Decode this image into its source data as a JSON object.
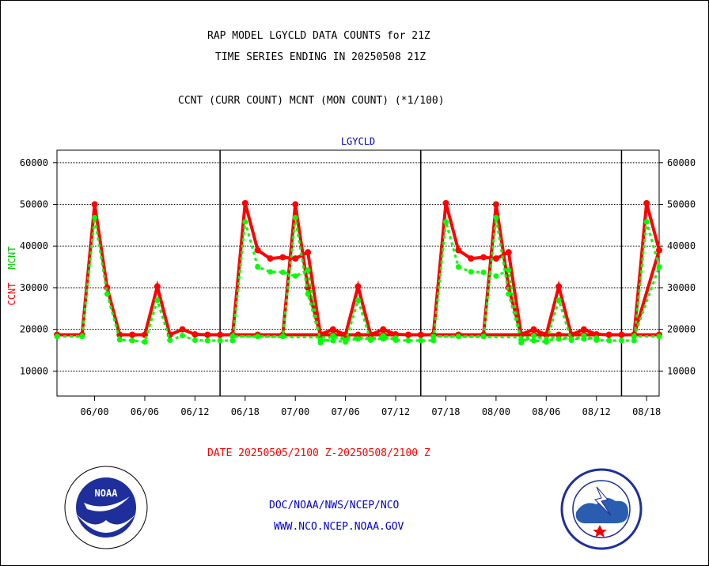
{
  "header": {
    "title_line1": "RAP MODEL LGYCLD DATA COUNTS for 21Z",
    "title_line2": "TIME SERIES ENDING IN 20250508 21Z",
    "subtitle": "CCNT (CURR COUNT) MCNT (MON COUNT) (*1/100)"
  },
  "footer": {
    "date_range": "DATE 20250505/2100 Z-20250508/2100 Z",
    "org_line": "DOC/NOAA/NWS/NCEP/NCO",
    "url_line": "WWW.NCO.NCEP.NOAA.GOV",
    "left_logo": "noaa-logo",
    "right_logo": "nws-logo",
    "noaa_text": "NOAA"
  },
  "chart_data": {
    "type": "line",
    "title": "LGYCLD",
    "ylabel_ccnt": "CCNT",
    "ylabel_mcnt": "MCNT",
    "yticks": [
      10000,
      20000,
      30000,
      40000,
      50000,
      60000
    ],
    "ylim": [
      4000,
      63000
    ],
    "xlim": [
      -2.5,
      21.5
    ],
    "day_offsets": [
      -1,
      7,
      15,
      23
    ],
    "day_labels": [
      "06/00",
      "06/06",
      "06/12",
      "06/18",
      "07/00",
      "07/06",
      "07/12",
      "07/18",
      "08/00",
      "08/06",
      "08/12",
      "08/18"
    ],
    "day_separators": [
      4,
      12,
      20
    ],
    "colors": {
      "ccnt": "#ff0000",
      "mcnt": "#00ff00",
      "text": "#000000",
      "red_text": "#ff0000",
      "blue_text": "#0000cc",
      "green_label": "#00cc00"
    },
    "series": [
      {
        "name": "CCNT",
        "x": [
          -2.5,
          -1.5,
          -0.5,
          0,
          0.5,
          1,
          1.5,
          2,
          2.5,
          3,
          3.5,
          4,
          4.5,
          5,
          5.5,
          6,
          6.5,
          7,
          7.5,
          8,
          8.5,
          9,
          9.5,
          10,
          10.5,
          11,
          11.5,
          12
        ],
        "values": [
          18700,
          18700,
          18700,
          50000,
          30000,
          18700,
          18700,
          18700,
          30300,
          18700,
          20000,
          18800,
          18700,
          18700,
          18700,
          50300,
          39000,
          37000,
          37300,
          37000,
          38500,
          18800,
          20000,
          18700,
          18700,
          18700,
          18700,
          18700
        ]
      },
      {
        "name": "MCNT",
        "x": [
          -2.5,
          -1.5,
          -0.5,
          0,
          0.5,
          1,
          1.5,
          2,
          2.5,
          3,
          3.5,
          4,
          4.5,
          5,
          5.5,
          6,
          6.5,
          7,
          7.5,
          8,
          8.5,
          9,
          9.5,
          10,
          10.5,
          11,
          11.5,
          12
        ],
        "values": [
          18300,
          18300,
          18300,
          46800,
          28500,
          17500,
          17300,
          17000,
          27000,
          17400,
          18500,
          17400,
          17300,
          17300,
          17300,
          45800,
          35000,
          33800,
          33700,
          32800,
          34200,
          16800,
          18500,
          17400,
          17700,
          17700,
          17700,
          17900
        ]
      }
    ]
  }
}
